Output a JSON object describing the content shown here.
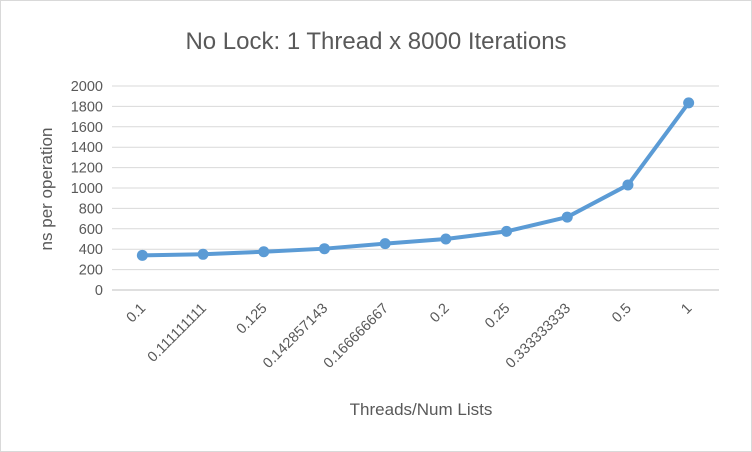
{
  "chart_data": {
    "type": "line",
    "title": "No Lock: 1 Thread x 8000  Iterations",
    "xlabel": "Threads/Num Lists",
    "ylabel": "ns per operation",
    "categories": [
      "0.1",
      "0.111111111",
      "0.125",
      "0.142857143",
      "0.166666667",
      "0.2",
      "0.25",
      "0.333333333",
      "0.5",
      "1"
    ],
    "series": [
      {
        "values": [
          340,
          350,
          375,
          405,
          455,
          500,
          575,
          715,
          1030,
          1835
        ],
        "color": "#5B9BD5"
      }
    ],
    "ylim": [
      0,
      2000
    ],
    "yticks": [
      0,
      200,
      400,
      600,
      800,
      1000,
      1200,
      1400,
      1600,
      1800,
      2000
    ],
    "grid": true,
    "legend": "none"
  }
}
